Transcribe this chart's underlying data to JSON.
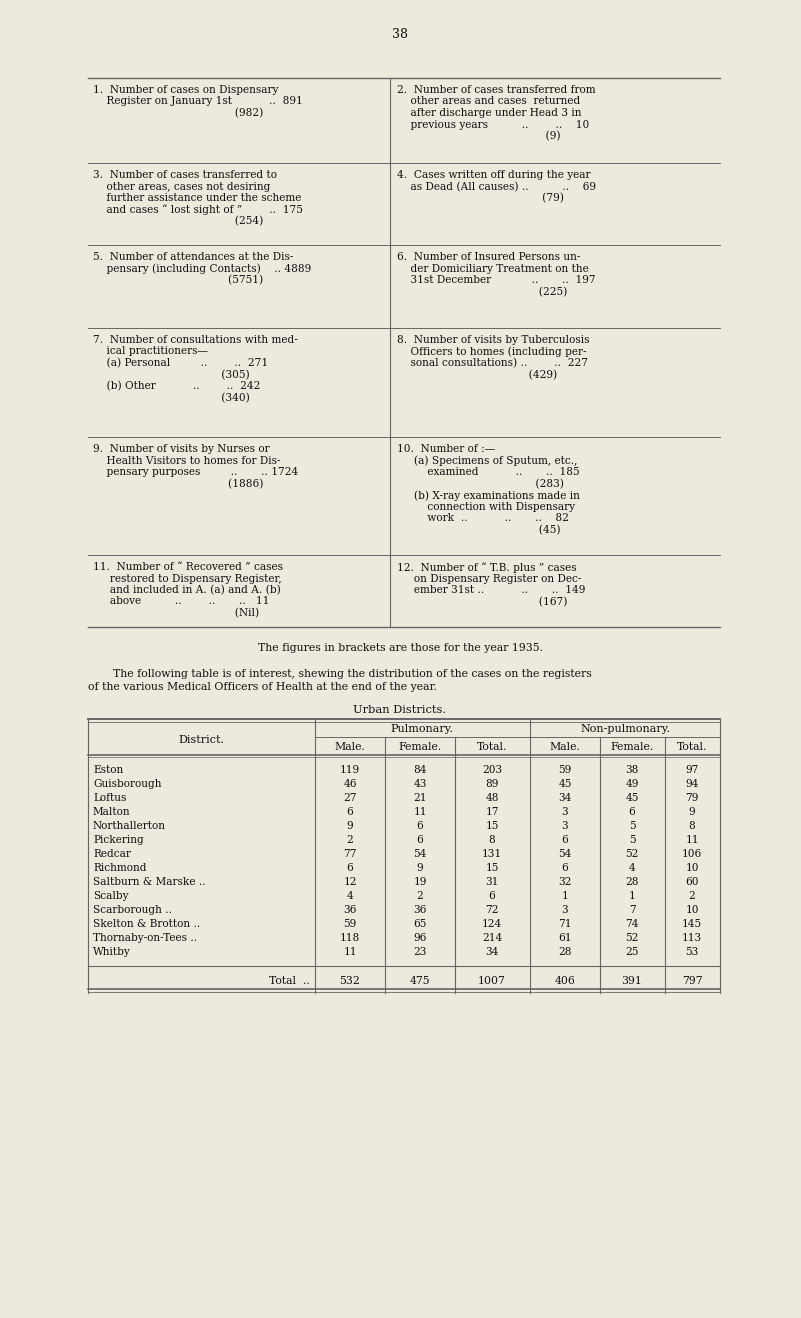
{
  "bg_color": "#ede9dc",
  "page_number": "38",
  "caption1": "The figures in brackets are those for the year 1935.",
  "caption2_line1": "    The following table is of interest, shewing the distribution of the cases on the registers",
  "caption2_line2": "of the various Medical Officers of Health at the end of the year.",
  "table_title": "Urban Districts.",
  "districts": [
    "Eston",
    "Guisborough",
    "Loftus",
    "Malton",
    "Northallerton",
    "Pickering",
    "Redcar",
    "Richmond",
    "Saltburn & Marske ..",
    "Scalby",
    "Scarborough ..",
    "Skelton & Brotton ..",
    "Thornaby-on-Tees ..",
    "Whitby"
  ],
  "pulm_male": [
    119,
    46,
    27,
    6,
    9,
    2,
    77,
    6,
    12,
    4,
    36,
    59,
    118,
    11
  ],
  "pulm_female": [
    84,
    43,
    21,
    11,
    6,
    6,
    54,
    9,
    19,
    2,
    36,
    65,
    96,
    23
  ],
  "pulm_total": [
    203,
    89,
    48,
    17,
    15,
    8,
    131,
    15,
    31,
    6,
    72,
    124,
    214,
    34
  ],
  "nonp_male": [
    59,
    45,
    34,
    3,
    3,
    6,
    54,
    6,
    32,
    1,
    3,
    71,
    61,
    28
  ],
  "nonp_female": [
    38,
    49,
    45,
    6,
    5,
    5,
    52,
    4,
    28,
    1,
    7,
    74,
    52,
    25
  ],
  "nonp_total": [
    97,
    94,
    79,
    9,
    8,
    11,
    106,
    10,
    60,
    2,
    10,
    145,
    113,
    53
  ],
  "total_row": {
    "label": "Total  ..",
    "pulm_male": 532,
    "pulm_female": 475,
    "pulm_total": 1007,
    "nonp_male": 406,
    "nonp_female": 391,
    "nonp_total": 797
  },
  "top_rows": [
    {
      "left_lines": [
        "1.  Number of cases on Dispensary",
        "    Register on January 1st           ..  891",
        "                                          (982)"
      ],
      "right_lines": [
        "2.  Number of cases transferred from",
        "    other areas and cases  returned",
        "    after discharge under Head 3 in",
        "    previous years          ..        ..    10",
        "                                            (9)"
      ]
    },
    {
      "left_lines": [
        "3.  Number of cases transferred to",
        "    other areas, cases not desiring",
        "    further assistance under the scheme",
        "    and cases “ lost sight of ”        ..  175",
        "                                          (254)"
      ],
      "right_lines": [
        "4.  Cases written off during the year",
        "    as Dead (All causes) ..          ..    69",
        "                                           (79)"
      ]
    },
    {
      "left_lines": [
        "5.  Number of attendances at the Dis-",
        "    pensary (including Contacts)    .. 4889",
        "                                        (5751)"
      ],
      "right_lines": [
        "6.  Number of Insured Persons un-",
        "    der Domiciliary Treatment on the",
        "    31st December            ..       ..  197",
        "                                          (225)"
      ]
    },
    {
      "left_lines": [
        "7.  Number of consultations with med-",
        "    ical practitioners—",
        "    (a) Personal         ..        ..  271",
        "                                      (305)",
        "    (b) Other           ..        ..  242",
        "                                      (340)"
      ],
      "right_lines": [
        "8.  Number of visits by Tuberculosis",
        "    Officers to homes (including per-",
        "    sonal consultations) ..        ..  227",
        "                                       (429)"
      ]
    },
    {
      "left_lines": [
        "9.  Number of visits by Nurses or",
        "    Health Visitors to homes for Dis-",
        "    pensary purposes         ..       .. 1724",
        "                                        (1886)"
      ],
      "right_lines": [
        "10.  Number of :—",
        "     (a) Specimens of Sputum, etc.,",
        "         examined           ..       ..  185",
        "                                         (283)",
        "     (b) X-ray examinations made in",
        "         connection with Dispensary",
        "         work  ..           ..       ..    82",
        "                                          (45)"
      ]
    },
    {
      "left_lines": [
        "11.  Number of “ Recovered ” cases",
        "     restored to Dispensary Register,",
        "     and included in A. (a) and A. (b)",
        "     above          ..        ..       ..   11",
        "                                          (Nil)"
      ],
      "right_lines": [
        "12.  Number of “ T.B. plus ” cases",
        "     on Dispensary Register on Dec-",
        "     ember 31st ..           ..       ..  149",
        "                                          (167)"
      ]
    }
  ]
}
